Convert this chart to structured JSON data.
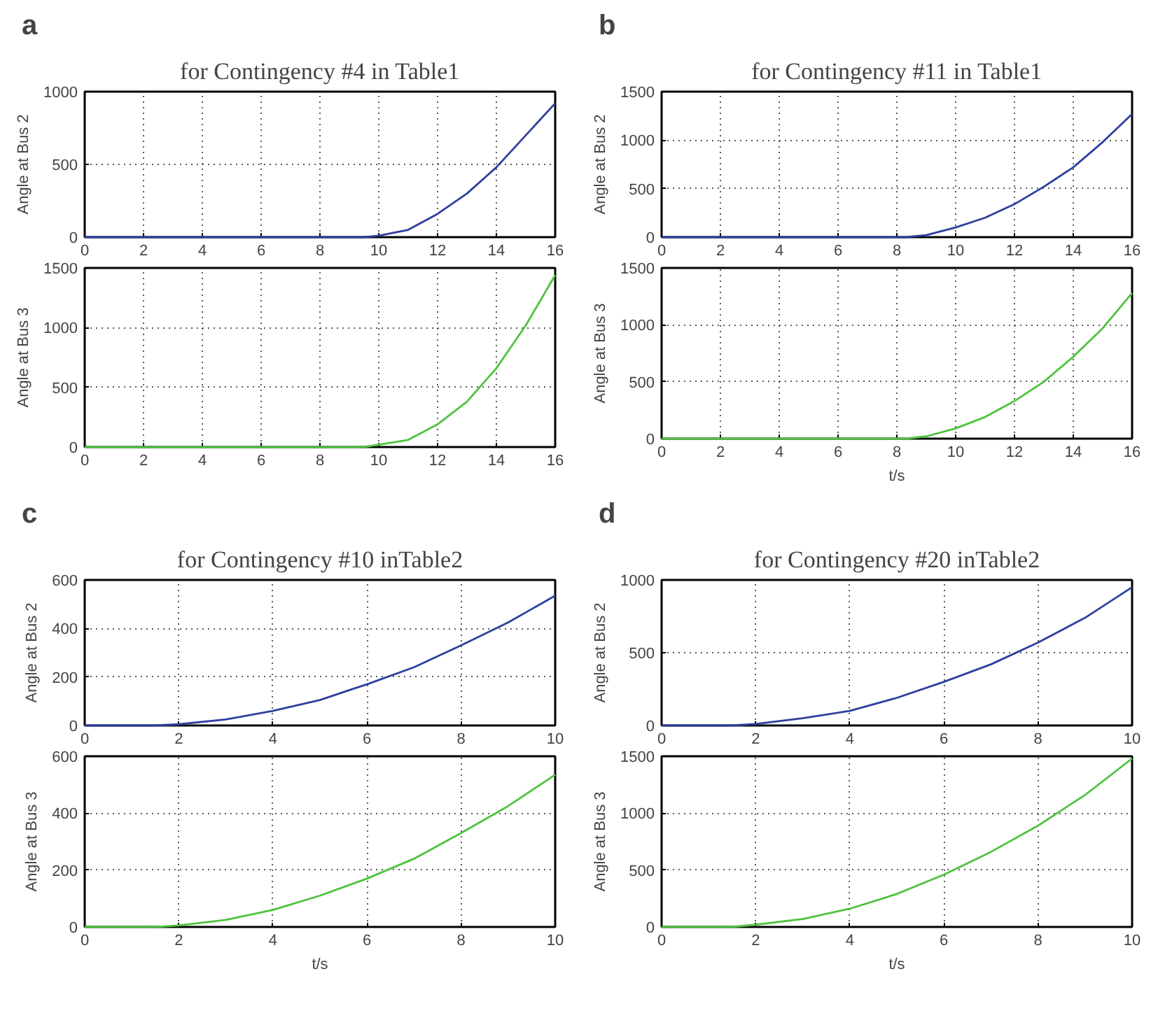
{
  "chart_data": [
    {
      "type": "line",
      "title": "for Contingency #4 in Table1",
      "annotations": [
        "a"
      ],
      "ylabel": "Angle at Bus 2",
      "xlim": [
        0,
        16
      ],
      "ylim": [
        0,
        1000
      ],
      "xticks": [
        0,
        2,
        4,
        6,
        8,
        10,
        12,
        14,
        16
      ],
      "yticks": [
        0,
        500,
        1000
      ],
      "grid": true,
      "x": [
        0,
        2,
        4,
        6,
        8,
        9,
        9.5,
        10,
        11,
        12,
        13,
        14,
        15,
        16
      ],
      "series": [
        {
          "color": "#2e3f9e",
          "values": [
            0,
            0,
            0,
            0,
            0,
            0,
            0,
            10,
            50,
            160,
            300,
            480,
            700,
            920
          ]
        }
      ]
    },
    {
      "type": "line",
      "ylabel": "Angle at Bus 3",
      "xlim": [
        0,
        16
      ],
      "ylim": [
        0,
        1500
      ],
      "xticks": [
        0,
        2,
        4,
        6,
        8,
        10,
        12,
        14,
        16
      ],
      "yticks": [
        0,
        500,
        1000,
        1500
      ],
      "grid": true,
      "x": [
        0,
        2,
        4,
        6,
        8,
        9,
        9.5,
        10,
        11,
        12,
        13,
        14,
        15,
        16
      ],
      "series": [
        {
          "color": "#4fc23f",
          "values": [
            0,
            0,
            0,
            0,
            0,
            0,
            0,
            20,
            60,
            190,
            380,
            660,
            1020,
            1440
          ]
        }
      ]
    },
    {
      "type": "line",
      "title": "for Contingency #11 in Table1",
      "annotations": [
        "b"
      ],
      "ylabel": "Angle at Bus 2",
      "xlim": [
        0,
        16
      ],
      "ylim": [
        0,
        1500
      ],
      "xticks": [
        0,
        2,
        4,
        6,
        8,
        10,
        12,
        14,
        16
      ],
      "yticks": [
        0,
        500,
        1000,
        1500
      ],
      "grid": true,
      "x": [
        0,
        2,
        4,
        6,
        8,
        8.3,
        9,
        10,
        11,
        12,
        13,
        14,
        15,
        16
      ],
      "series": [
        {
          "color": "#2e3f9e",
          "values": [
            0,
            0,
            0,
            0,
            0,
            0,
            20,
            100,
            200,
            340,
            520,
            720,
            980,
            1270
          ]
        }
      ]
    },
    {
      "type": "line",
      "xlabel": "t/s",
      "ylabel": "Angle at Bus 3",
      "xlim": [
        0,
        16
      ],
      "ylim": [
        0,
        1500
      ],
      "xticks": [
        0,
        2,
        4,
        6,
        8,
        10,
        12,
        14,
        16
      ],
      "yticks": [
        0,
        500,
        1000,
        1500
      ],
      "grid": true,
      "x": [
        0,
        2,
        4,
        6,
        8,
        8.3,
        9,
        10,
        11,
        12,
        13,
        14,
        15,
        16
      ],
      "series": [
        {
          "color": "#4fc23f",
          "values": [
            0,
            0,
            0,
            0,
            0,
            0,
            20,
            90,
            190,
            330,
            500,
            720,
            970,
            1280
          ]
        }
      ]
    },
    {
      "type": "line",
      "title": "for Contingency #10 inTable2",
      "annotations": [
        "c"
      ],
      "ylabel": "Angle at Bus 2",
      "xlim": [
        0,
        10
      ],
      "ylim": [
        0,
        600
      ],
      "xticks": [
        0,
        2,
        4,
        6,
        8,
        10
      ],
      "yticks": [
        0,
        200,
        400,
        600
      ],
      "grid": true,
      "x": [
        0,
        1,
        1.5,
        2,
        3,
        4,
        5,
        6,
        7,
        8,
        9,
        10
      ],
      "series": [
        {
          "color": "#2e3f9e",
          "values": [
            0,
            0,
            0,
            5,
            25,
            60,
            105,
            170,
            240,
            330,
            425,
            535
          ]
        }
      ]
    },
    {
      "type": "line",
      "xlabel": "t/s",
      "ylabel": "Angle at Bus 3",
      "xlim": [
        0,
        10
      ],
      "ylim": [
        0,
        600
      ],
      "xticks": [
        0,
        2,
        4,
        6,
        8,
        10
      ],
      "yticks": [
        0,
        200,
        400,
        600
      ],
      "grid": true,
      "x": [
        0,
        1,
        1.5,
        2,
        3,
        4,
        5,
        6,
        7,
        8,
        9,
        10
      ],
      "series": [
        {
          "color": "#4fc23f",
          "values": [
            0,
            0,
            0,
            5,
            25,
            60,
            110,
            170,
            240,
            330,
            425,
            535
          ]
        }
      ]
    },
    {
      "type": "line",
      "title": "for Contingency #20 inTable2",
      "annotations": [
        "d"
      ],
      "ylabel": "Angle at Bus 2",
      "xlim": [
        0,
        10
      ],
      "ylim": [
        0,
        1000
      ],
      "xticks": [
        0,
        2,
        4,
        6,
        8,
        10
      ],
      "yticks": [
        0,
        500,
        1000
      ],
      "grid": true,
      "x": [
        0,
        1,
        1.5,
        2,
        3,
        4,
        5,
        6,
        7,
        8,
        9,
        10
      ],
      "series": [
        {
          "color": "#2e3f9e",
          "values": [
            0,
            0,
            0,
            10,
            50,
            100,
            190,
            300,
            420,
            570,
            740,
            950
          ]
        }
      ]
    },
    {
      "type": "line",
      "xlabel": "t/s",
      "ylabel": "Angle at Bus 3",
      "xlim": [
        0,
        10
      ],
      "ylim": [
        0,
        1500
      ],
      "xticks": [
        0,
        2,
        4,
        6,
        8,
        10
      ],
      "yticks": [
        0,
        500,
        1000,
        1500
      ],
      "grid": true,
      "x": [
        0,
        1,
        1.5,
        2,
        3,
        4,
        5,
        6,
        7,
        8,
        9,
        10
      ],
      "series": [
        {
          "color": "#4fc23f",
          "values": [
            0,
            0,
            0,
            20,
            70,
            160,
            290,
            460,
            660,
            890,
            1160,
            1480
          ]
        }
      ]
    }
  ]
}
